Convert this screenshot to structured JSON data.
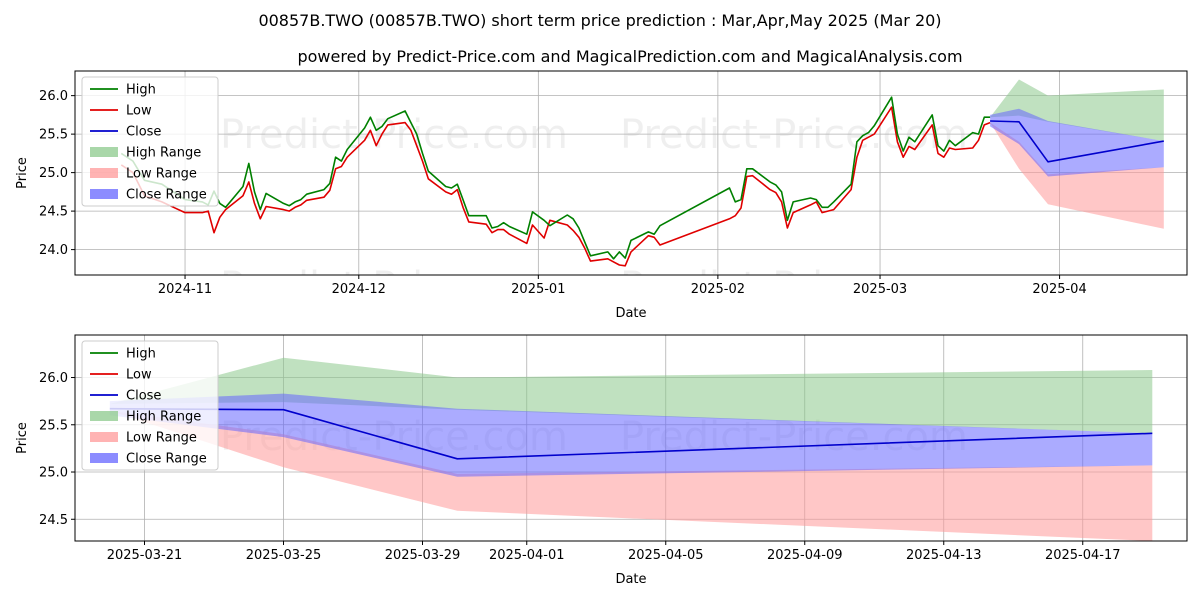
{
  "title_line1": "00857B.TWO (00857B.TWO) short term price prediction : Mar,Apr,May 2025 (Mar 20)",
  "title_line2": "powered by Predict-Price.com and MagicalPrediction.com and MagicalAnalysis.com",
  "watermark": "Predict-Price.com",
  "colors": {
    "high": "#008000",
    "low": "#e00000",
    "close": "#0000cc",
    "high_range": "#8cc98c",
    "low_range": "#ff9999",
    "close_range": "#6666ff"
  },
  "legend": {
    "entries": [
      "High",
      "Low",
      "Close",
      "High Range",
      "Low Range",
      "Close Range"
    ],
    "placement": "top-left"
  },
  "chart_data": [
    {
      "type": "line",
      "panel": "top",
      "xlabel": "Date",
      "ylabel": "Price",
      "ylim": [
        23.67,
        26.32
      ],
      "xlim": [
        "2024-10-13",
        "2025-04-23"
      ],
      "grid": true,
      "x_ticks": [
        "2024-11",
        "2024-12",
        "2025-01",
        "2025-02",
        "2025-03",
        "2025-04"
      ],
      "y_ticks": [
        "24.0",
        "24.5",
        "25.0",
        "25.5",
        "26.0"
      ],
      "history_x": [
        "2024-10-21",
        "2024-10-23",
        "2024-10-25",
        "2024-10-28",
        "2024-10-30",
        "2024-11-01",
        "2024-11-04",
        "2024-11-05",
        "2024-11-06",
        "2024-11-07",
        "2024-11-08",
        "2024-11-11",
        "2024-11-12",
        "2024-11-13",
        "2024-11-14",
        "2024-11-15",
        "2024-11-18",
        "2024-11-19",
        "2024-11-20",
        "2024-11-21",
        "2024-11-22",
        "2024-11-25",
        "2024-11-26",
        "2024-11-27",
        "2024-11-28",
        "2024-11-29",
        "2024-12-02",
        "2024-12-03",
        "2024-12-04",
        "2024-12-05",
        "2024-12-06",
        "2024-12-09",
        "2024-12-10",
        "2024-12-11",
        "2024-12-12",
        "2024-12-13",
        "2024-12-16",
        "2024-12-17",
        "2024-12-18",
        "2024-12-19",
        "2024-12-20",
        "2024-12-23",
        "2024-12-24",
        "2024-12-25",
        "2024-12-26",
        "2024-12-27",
        "2024-12-30",
        "2024-12-31",
        "2025-01-02",
        "2025-01-03",
        "2025-01-06",
        "2025-01-07",
        "2025-01-08",
        "2025-01-09",
        "2025-01-10",
        "2025-01-13",
        "2025-01-14",
        "2025-01-15",
        "2025-01-16",
        "2025-01-17",
        "2025-01-20",
        "2025-01-21",
        "2025-01-22",
        "2025-02-03",
        "2025-02-04",
        "2025-02-05",
        "2025-02-06",
        "2025-02-07",
        "2025-02-10",
        "2025-02-11",
        "2025-02-12",
        "2025-02-13",
        "2025-02-14",
        "2025-02-17",
        "2025-02-18",
        "2025-02-19",
        "2025-02-20",
        "2025-02-21",
        "2025-02-24",
        "2025-02-25",
        "2025-02-26",
        "2025-02-27",
        "2025-02-28",
        "2025-03-03",
        "2025-03-04",
        "2025-03-05",
        "2025-03-06",
        "2025-03-07",
        "2025-03-10",
        "2025-03-11",
        "2025-03-12",
        "2025-03-13",
        "2025-03-14",
        "2025-03-17",
        "2025-03-18",
        "2025-03-19",
        "2025-03-20"
      ],
      "history_high": [
        25.25,
        25.15,
        24.9,
        24.85,
        24.75,
        24.65,
        24.62,
        24.58,
        24.76,
        24.6,
        24.55,
        24.82,
        25.12,
        24.75,
        24.52,
        24.73,
        24.6,
        24.57,
        24.62,
        24.65,
        24.72,
        24.78,
        24.86,
        25.2,
        25.15,
        25.3,
        25.58,
        25.72,
        25.55,
        25.6,
        25.7,
        25.8,
        25.65,
        25.5,
        25.25,
        25.02,
        24.82,
        24.8,
        24.85,
        24.65,
        24.44,
        24.44,
        24.28,
        24.3,
        24.35,
        24.3,
        24.2,
        24.49,
        24.38,
        24.31,
        24.45,
        24.4,
        24.28,
        24.1,
        23.92,
        23.97,
        23.88,
        23.97,
        23.89,
        24.12,
        24.23,
        24.2,
        24.31,
        24.8,
        24.62,
        24.65,
        25.05,
        25.05,
        24.88,
        24.84,
        24.75,
        24.38,
        24.62,
        24.67,
        24.65,
        24.55,
        24.55,
        24.62,
        24.85,
        25.4,
        25.48,
        25.52,
        25.61,
        25.98,
        25.5,
        25.28,
        25.46,
        25.4,
        25.75,
        25.35,
        25.28,
        25.42,
        25.35,
        25.52,
        25.5,
        25.72,
        25.72
      ],
      "history_low": [
        25.1,
        25.0,
        24.7,
        24.62,
        24.55,
        24.48,
        24.48,
        24.5,
        24.22,
        24.42,
        24.52,
        24.7,
        24.88,
        24.6,
        24.4,
        24.56,
        24.52,
        24.5,
        24.55,
        24.58,
        24.64,
        24.68,
        24.77,
        25.05,
        25.08,
        25.2,
        25.42,
        25.55,
        25.35,
        25.5,
        25.62,
        25.65,
        25.55,
        25.35,
        25.15,
        24.92,
        24.75,
        24.72,
        24.78,
        24.55,
        24.36,
        24.33,
        24.22,
        24.26,
        24.26,
        24.2,
        24.08,
        24.32,
        24.15,
        24.38,
        24.32,
        24.25,
        24.16,
        24.02,
        23.85,
        23.88,
        23.84,
        23.8,
        23.79,
        23.97,
        24.18,
        24.16,
        24.06,
        24.4,
        24.44,
        24.54,
        24.95,
        24.96,
        24.78,
        24.74,
        24.62,
        24.28,
        24.48,
        24.58,
        24.62,
        24.48,
        24.5,
        24.52,
        24.78,
        25.2,
        25.42,
        25.46,
        25.5,
        25.85,
        25.4,
        25.2,
        25.34,
        25.3,
        25.62,
        25.25,
        25.2,
        25.32,
        25.3,
        25.32,
        25.42,
        25.62,
        25.65
      ],
      "forecast_x": [
        "2025-03-20",
        "2025-03-25",
        "2025-03-30",
        "2025-04-19"
      ],
      "forecast_close": [
        25.67,
        25.66,
        25.14,
        25.41
      ],
      "high_range": {
        "upper": [
          25.72,
          26.21,
          26.0,
          26.08
        ],
        "lower": [
          25.72,
          25.74,
          25.66,
          25.41
        ]
      },
      "low_range": {
        "upper": [
          25.65,
          25.4,
          24.98,
          25.07
        ],
        "lower": [
          25.65,
          25.05,
          24.59,
          24.27
        ]
      },
      "close_range": {
        "upper": [
          25.75,
          25.83,
          25.67,
          25.41
        ],
        "lower": [
          25.6,
          25.37,
          24.95,
          25.07
        ]
      }
    },
    {
      "type": "line",
      "panel": "bottom",
      "xlabel": "Date",
      "ylabel": "Price",
      "ylim": [
        24.27,
        26.45
      ],
      "xlim": [
        "2025-03-19",
        "2025-04-20"
      ],
      "grid": true,
      "x_ticks": [
        "2025-03-21",
        "2025-03-25",
        "2025-03-29",
        "2025-04-01",
        "2025-04-05",
        "2025-04-09",
        "2025-04-13",
        "2025-04-17"
      ],
      "y_ticks": [
        "24.5",
        "25.0",
        "25.5",
        "26.0"
      ],
      "forecast_x": [
        "2025-03-20",
        "2025-03-25",
        "2025-03-30",
        "2025-04-19"
      ],
      "forecast_close": [
        25.67,
        25.66,
        25.14,
        25.41
      ],
      "high_range": {
        "upper": [
          25.72,
          26.21,
          26.0,
          26.08
        ],
        "lower": [
          25.72,
          25.74,
          25.66,
          25.41
        ]
      },
      "low_range": {
        "upper": [
          25.65,
          25.4,
          24.98,
          25.07
        ],
        "lower": [
          25.65,
          25.05,
          24.59,
          24.27
        ]
      },
      "close_range": {
        "upper": [
          25.75,
          25.83,
          25.67,
          25.41
        ],
        "lower": [
          25.6,
          25.37,
          24.95,
          25.07
        ]
      }
    }
  ]
}
